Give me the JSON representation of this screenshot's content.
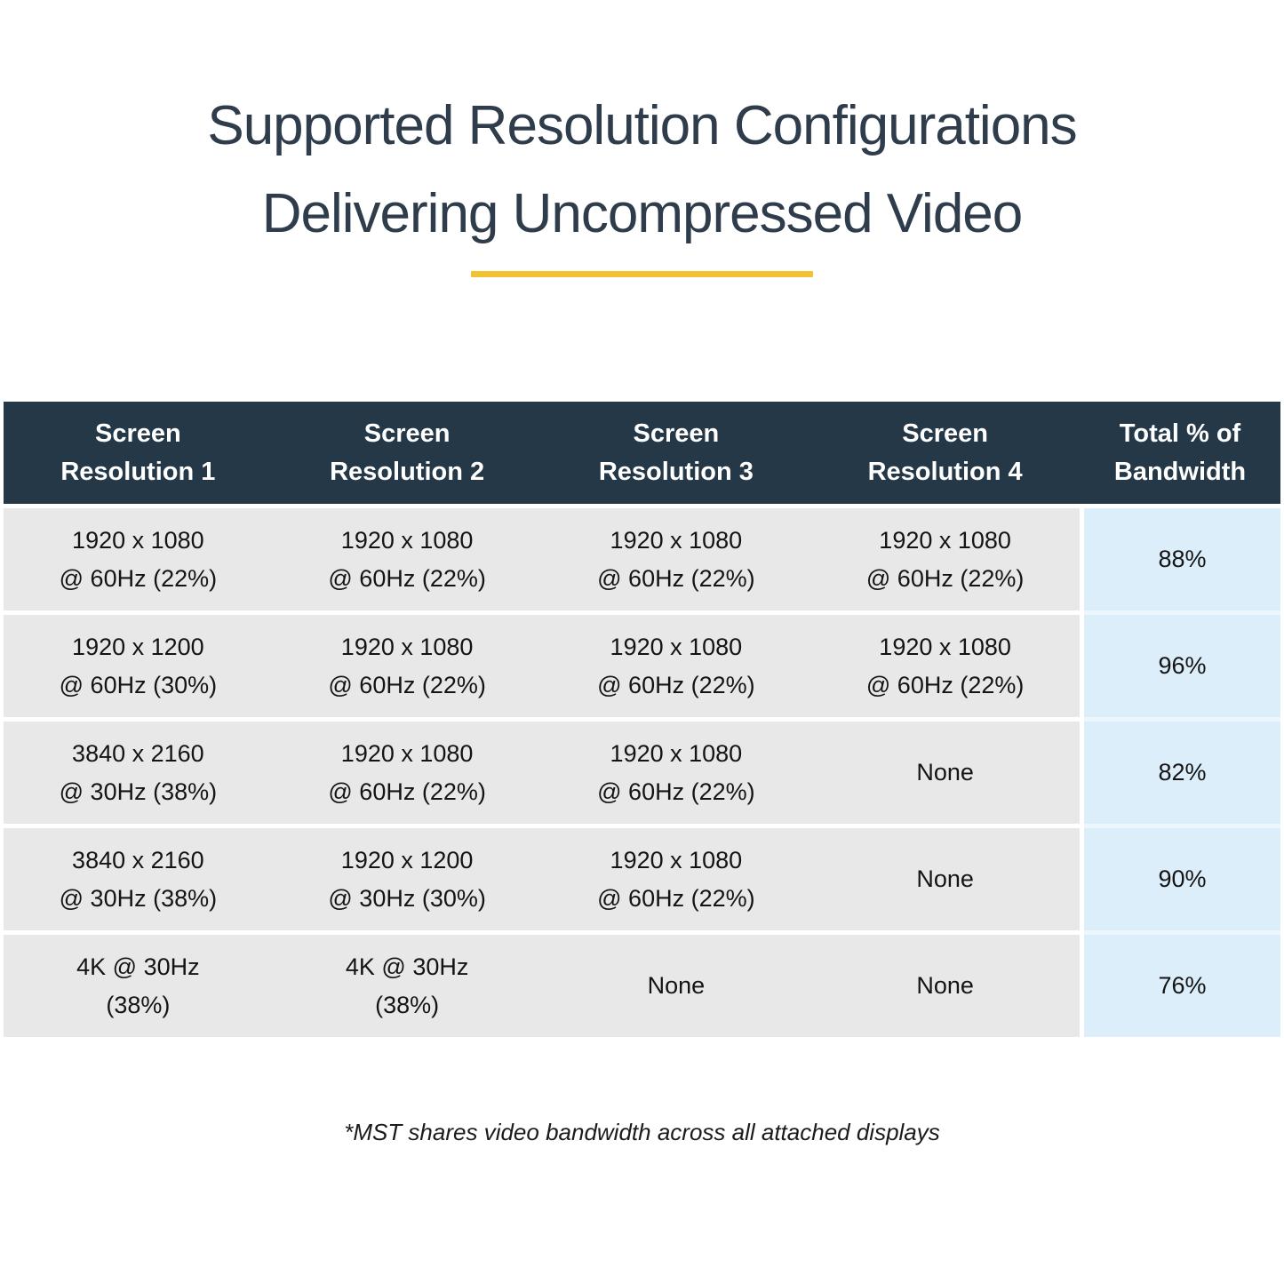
{
  "page": {
    "title_line1": "Supported Resolution Configurations",
    "title_line2": "Delivering Uncompressed Video",
    "footnote": "*MST shares video bandwidth across all attached displays"
  },
  "display": {
    "headers": [
      "Screen\nResolution 1",
      "Screen\nResolution 2",
      "Screen\nResolution 3",
      "Screen\nResolution 4",
      "Total % of\nBandwidth"
    ],
    "rows": [
      {
        "cells": [
          "1920 x 1080\n@ 60Hz (22%)",
          "1920 x 1080\n@ 60Hz (22%)",
          "1920 x 1080\n@ 60Hz (22%)",
          "1920 x 1080\n@ 60Hz (22%)"
        ],
        "bandwidth": "88%"
      },
      {
        "cells": [
          "1920 x 1200\n@ 60Hz (30%)",
          "1920 x 1080\n@ 60Hz (22%)",
          "1920 x 1080\n@ 60Hz (22%)",
          "1920 x 1080\n@ 60Hz (22%)"
        ],
        "bandwidth": "96%"
      },
      {
        "cells": [
          "3840 x 2160\n@ 30Hz (38%)",
          "1920 x 1080\n@ 60Hz (22%)",
          "1920 x 1080\n@ 60Hz (22%)",
          "None"
        ],
        "bandwidth": "82%"
      },
      {
        "cells": [
          "3840 x 2160\n@ 30Hz (38%)",
          "1920 x 1200\n@ 30Hz (30%)",
          "1920 x 1080\n@ 60Hz (22%)",
          "None"
        ],
        "bandwidth": "90%"
      },
      {
        "cells": [
          "4K @ 30Hz\n(38%)",
          "4K @ 30Hz\n(38%)",
          "None",
          "None"
        ],
        "bandwidth": "76%"
      }
    ]
  },
  "chart_data": {
    "type": "table",
    "title": "Supported Resolution Configurations Delivering Uncompressed Video",
    "columns": [
      "Screen Resolution 1",
      "Screen Resolution 2",
      "Screen Resolution 3",
      "Screen Resolution 4",
      "Total % of Bandwidth"
    ],
    "rows": [
      [
        "1920 x 1080 @ 60Hz (22%)",
        "1920 x 1080 @ 60Hz (22%)",
        "1920 x 1080 @ 60Hz (22%)",
        "1920 x 1080 @ 60Hz (22%)",
        "88%"
      ],
      [
        "1920 x 1200 @ 60Hz (30%)",
        "1920 x 1080 @ 60Hz (22%)",
        "1920 x 1080 @ 60Hz (22%)",
        "1920 x 1080 @ 60Hz (22%)",
        "96%"
      ],
      [
        "3840 x 2160 @ 30Hz (38%)",
        "1920 x 1080 @ 60Hz (22%)",
        "1920 x 1080 @ 60Hz (22%)",
        "None",
        "82%"
      ],
      [
        "3840 x 2160 @ 30Hz (38%)",
        "1920 x 1200 @ 30Hz (30%)",
        "1920 x 1080 @ 60Hz (22%)",
        "None",
        "90%"
      ],
      [
        "4K @ 30Hz (38%)",
        "4K @ 30Hz (38%)",
        "None",
        "None",
        "76%"
      ]
    ],
    "footnote": "*MST shares video bandwidth across all attached displays"
  },
  "colors": {
    "header_bg": "#253847",
    "header_text": "#FFFFFF",
    "row_bg": "#E8E8E8",
    "bandwidth_bg": "#DCEEFA",
    "bandwidth_gap_bg": "#EDF6FC",
    "accent_underline": "#F2C233",
    "title_text": "#2E3C4B",
    "body_text": "#141414"
  }
}
